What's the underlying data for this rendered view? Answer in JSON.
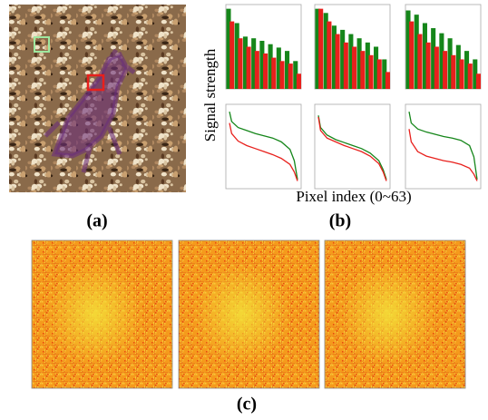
{
  "figure": {
    "y_label": "Signal strength",
    "x_label": "Pixel index (0~63)",
    "panel_labels": [
      "(a)",
      "(b)",
      "(c)"
    ]
  },
  "chart_data": [
    {
      "type": "bar",
      "categories": [
        null,
        null,
        null,
        null,
        null,
        null,
        null,
        null,
        null
      ],
      "ylim": [
        0,
        1
      ],
      "series": [
        {
          "color": "#15861a",
          "values": [
            0.95,
            0.78,
            0.62,
            0.6,
            0.57,
            0.53,
            0.49,
            0.45,
            0.33
          ]
        },
        {
          "color": "#e8201c",
          "values": [
            0.8,
            0.6,
            0.5,
            0.45,
            0.42,
            0.37,
            0.33,
            0.3,
            0.18
          ]
        }
      ]
    },
    {
      "type": "bar",
      "categories": [
        null,
        null,
        null,
        null,
        null,
        null,
        null,
        null,
        null
      ],
      "ylim": [
        0,
        1
      ],
      "series": [
        {
          "color": "#15861a",
          "values": [
            0.95,
            0.9,
            0.75,
            0.7,
            0.65,
            0.6,
            0.55,
            0.5,
            0.35
          ]
        },
        {
          "color": "#e8201c",
          "values": [
            0.95,
            0.8,
            0.65,
            0.55,
            0.5,
            0.45,
            0.4,
            0.35,
            0.2
          ]
        }
      ]
    },
    {
      "type": "bar",
      "categories": [
        null,
        null,
        null,
        null,
        null,
        null,
        null,
        null,
        null
      ],
      "ylim": [
        0,
        1
      ],
      "series": [
        {
          "color": "#15861a",
          "values": [
            0.93,
            0.88,
            0.78,
            0.72,
            0.66,
            0.6,
            0.52,
            0.45,
            0.35
          ]
        },
        {
          "color": "#e8201c",
          "values": [
            0.8,
            0.65,
            0.55,
            0.5,
            0.45,
            0.4,
            0.35,
            0.3,
            0.18
          ]
        }
      ]
    },
    {
      "type": "line",
      "x": [
        0,
        2,
        8,
        16,
        24,
        32,
        40,
        48,
        56,
        60,
        63
      ],
      "xlim": [
        0,
        63
      ],
      "ylim": [
        0,
        1
      ],
      "series": [
        {
          "color": "#15861a",
          "values": [
            0.95,
            0.82,
            0.74,
            0.7,
            0.66,
            0.63,
            0.6,
            0.55,
            0.45,
            0.3,
            0.05
          ]
        },
        {
          "color": "#e8201c",
          "values": [
            0.8,
            0.66,
            0.56,
            0.5,
            0.46,
            0.42,
            0.38,
            0.33,
            0.25,
            0.15,
            0.03
          ]
        }
      ]
    },
    {
      "type": "line",
      "x": [
        0,
        2,
        8,
        16,
        24,
        32,
        40,
        48,
        56,
        60,
        63
      ],
      "xlim": [
        0,
        63
      ],
      "ylim": [
        0,
        1
      ],
      "series": [
        {
          "color": "#15861a",
          "values": [
            0.9,
            0.74,
            0.64,
            0.58,
            0.54,
            0.5,
            0.46,
            0.4,
            0.3,
            0.18,
            0.05
          ]
        },
        {
          "color": "#e8201c",
          "values": [
            0.88,
            0.7,
            0.6,
            0.55,
            0.5,
            0.46,
            0.42,
            0.36,
            0.26,
            0.15,
            0.03
          ]
        }
      ]
    },
    {
      "type": "line",
      "x": [
        0,
        2,
        8,
        16,
        24,
        32,
        40,
        48,
        56,
        60,
        63
      ],
      "xlim": [
        0,
        63
      ],
      "ylim": [
        0,
        1
      ],
      "series": [
        {
          "color": "#15861a",
          "values": [
            0.95,
            0.8,
            0.72,
            0.68,
            0.65,
            0.62,
            0.6,
            0.57,
            0.5,
            0.35,
            0.05
          ]
        },
        {
          "color": "#e8201c",
          "values": [
            0.72,
            0.55,
            0.42,
            0.36,
            0.33,
            0.3,
            0.28,
            0.25,
            0.2,
            0.12,
            0.03
          ]
        }
      ]
    }
  ]
}
